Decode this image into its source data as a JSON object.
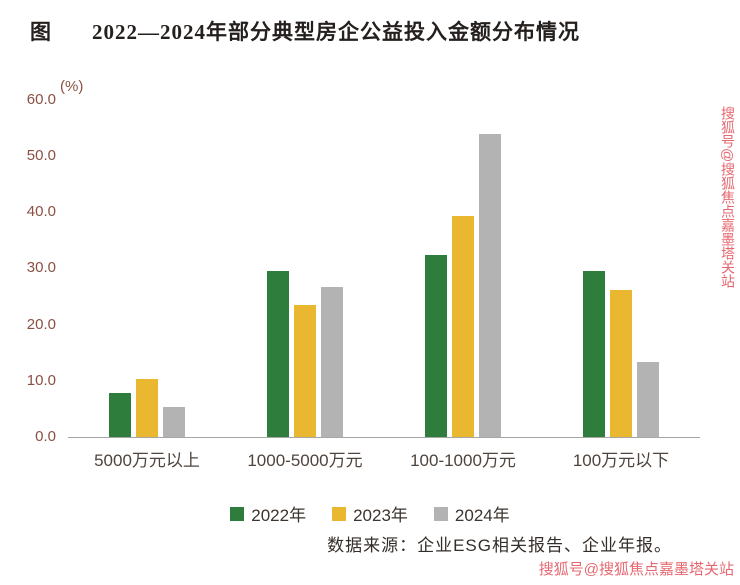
{
  "figure": {
    "prefix": "图",
    "title": "2022—2024年部分典型房企公益投入金额分布情况"
  },
  "chart_data": {
    "type": "bar",
    "title": "2022—2024年部分典型房企公益投入金额分布情况",
    "unit_label": "(%)",
    "categories": [
      "5000万元以上",
      "1000-5000万元",
      "100-1000万元",
      "100万元以下"
    ],
    "series": [
      {
        "name": "2022年",
        "color": "#2e7d3c",
        "values": [
          7.9,
          29.5,
          32.4,
          29.5
        ]
      },
      {
        "name": "2023年",
        "color": "#eab830",
        "values": [
          10.3,
          23.5,
          39.4,
          26.2
        ]
      },
      {
        "name": "2024年",
        "color": "#b3b3b3",
        "values": [
          5.3,
          26.8,
          53.9,
          13.3
        ]
      }
    ],
    "ylim": [
      0,
      60
    ],
    "yticks": [
      "60.0",
      "50.0",
      "40.0",
      "30.0",
      "20.0",
      "10.0",
      "0.0"
    ],
    "grid": false,
    "legend_position": "bottom"
  },
  "source": {
    "text": "数据来源：企业ESG相关报告、企业年报。"
  },
  "watermark": {
    "text": "搜狐号@搜狐焦点嘉墨塔关站",
    "color": "#e05a64"
  }
}
